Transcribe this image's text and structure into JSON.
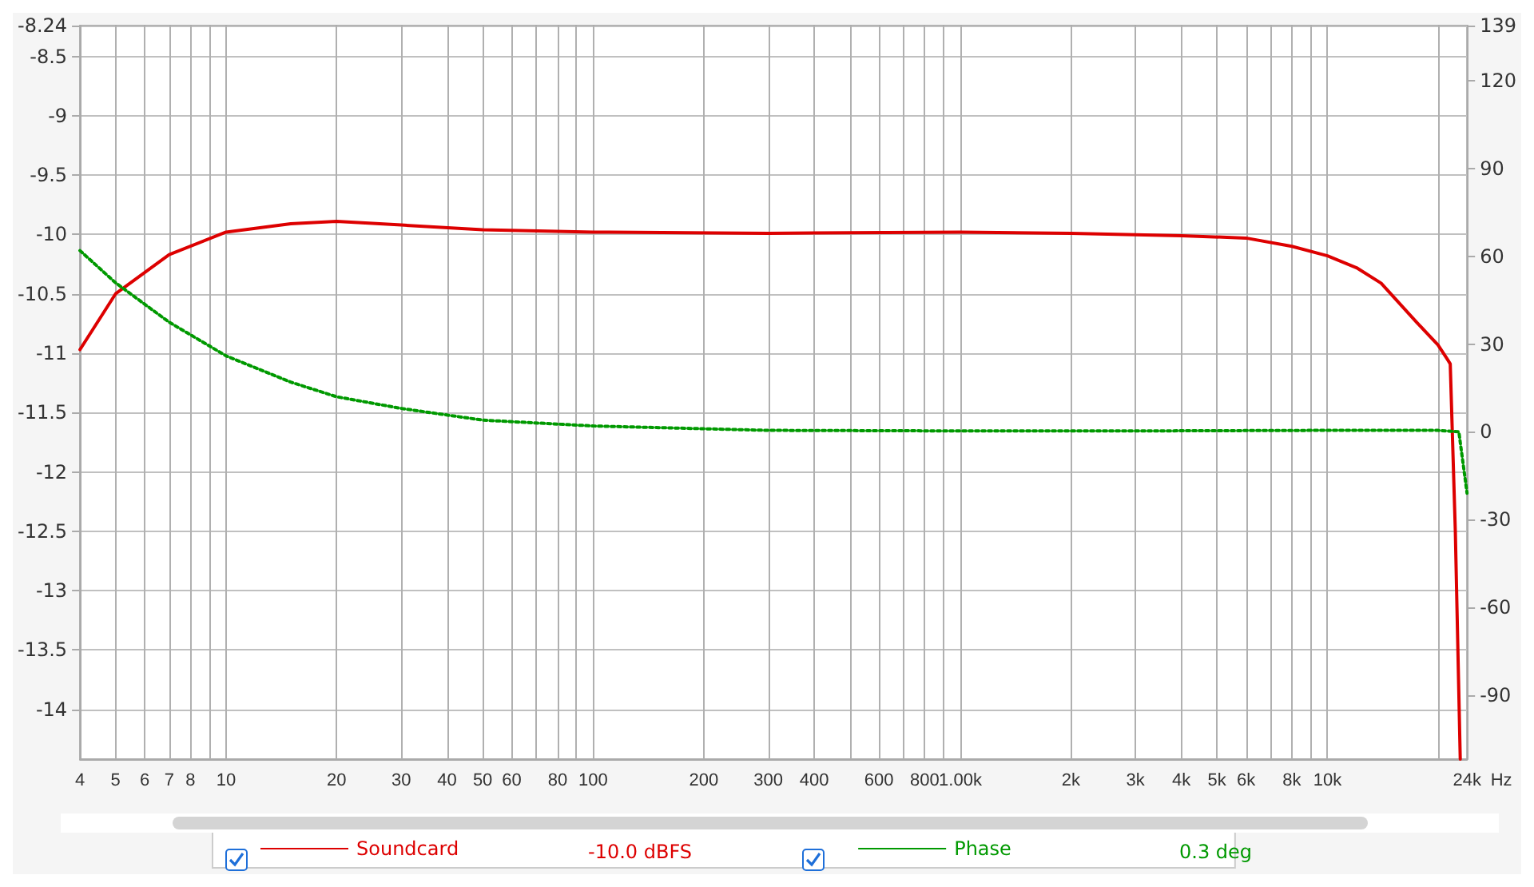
{
  "chart_data": {
    "type": "line",
    "xlim": [
      4,
      24000
    ],
    "ylim": [
      -14.42,
      -8.24
    ],
    "y2lim": [
      -112,
      139
    ],
    "xticks": [
      4,
      5,
      6,
      7,
      8,
      {
        "value": 9,
        "label": null
      },
      10,
      20,
      30,
      40,
      50,
      60,
      {
        "value": 70,
        "label": null
      },
      80,
      {
        "value": 90,
        "label": null
      },
      100,
      200,
      300,
      400,
      {
        "value": 500,
        "label": null
      },
      600,
      {
        "value": 700,
        "label": null
      },
      800,
      {
        "value": 900,
        "label": null
      },
      {
        "value": 1000,
        "label": "1.00k"
      },
      {
        "value": 2000,
        "label": "2k"
      },
      {
        "value": 3000,
        "label": "3k"
      },
      {
        "value": 4000,
        "label": "4k"
      },
      {
        "value": 5000,
        "label": "5k"
      },
      {
        "value": 6000,
        "label": "6k"
      },
      {
        "value": 7000,
        "label": null
      },
      {
        "value": 8000,
        "label": "8k"
      },
      {
        "value": 9000,
        "label": null
      },
      {
        "value": 10000,
        "label": "10k"
      },
      {
        "value": 20000,
        "label": null
      },
      {
        "value": 24000,
        "label": "24k"
      }
    ],
    "xlabel": "Hz",
    "yticks": [
      -8.24,
      -8.5,
      -9.0,
      -9.5,
      -10.0,
      -10.5,
      -11.0,
      -11.5,
      -12.0,
      -12.5,
      -13.0,
      -13.5,
      -14.0
    ],
    "y2ticks": [
      139,
      120,
      90,
      60,
      30,
      0,
      -30,
      -60,
      -90
    ],
    "grid": true,
    "legend": "bottom",
    "marker": "none",
    "log": "x",
    "annotations": [
      "-10.0 dBFS",
      "0.3 deg"
    ],
    "series": [
      {
        "name": "Soundcard",
        "color": "#dd0000",
        "line_style": "solid",
        "x": [
          4,
          5,
          7,
          10,
          15,
          20,
          30,
          50,
          100,
          300,
          1000,
          2000,
          4000,
          6000,
          8000,
          10000,
          12000,
          14000,
          17500,
          20000,
          21200,
          21600,
          22300,
          23000
        ],
        "values": [
          -10.97,
          -10.5,
          -10.17,
          -9.98,
          -9.91,
          -9.89,
          -9.92,
          -9.96,
          -9.98,
          -9.99,
          -9.98,
          -9.99,
          -10.01,
          -10.03,
          -10.1,
          -10.18,
          -10.28,
          -10.41,
          -10.74,
          -10.93,
          -11.05,
          -11.09,
          -12.5,
          -14.42
        ]
      },
      {
        "name": "Phase",
        "color": "#009900",
        "line_style": "dotted",
        "axis": "y2",
        "x": [
          4,
          5,
          7,
          10,
          15,
          20,
          30,
          50,
          100,
          300,
          1000,
          3000,
          10000,
          20000,
          22800,
          24000
        ],
        "values": [
          62,
          51,
          37.5,
          26,
          17,
          12,
          8,
          4,
          2,
          0.5,
          0.3,
          0.3,
          0.5,
          0.5,
          0,
          -21
        ]
      }
    ]
  }
}
